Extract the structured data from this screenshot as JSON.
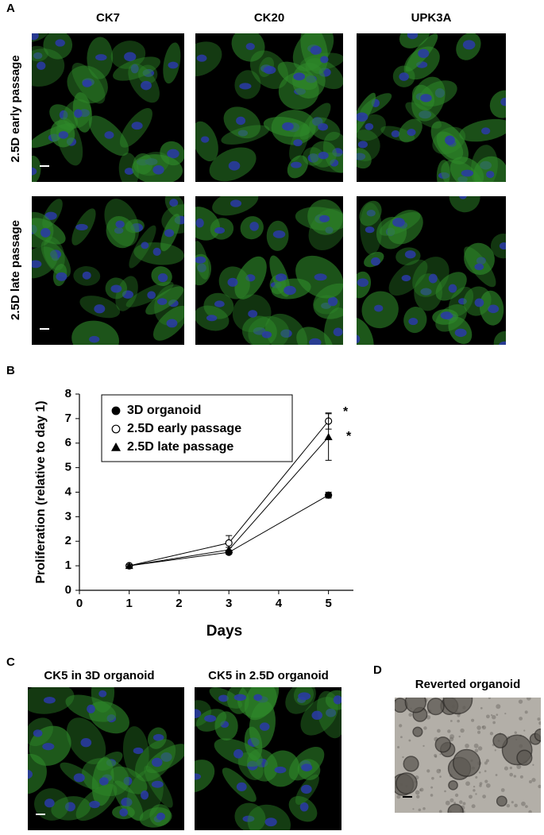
{
  "panels": {
    "a": {
      "label": "A",
      "columns": [
        "CK7",
        "CK20",
        "UPK3A"
      ],
      "rows": [
        "2.5D early passage",
        "2.5D late passage"
      ]
    },
    "b": {
      "label": "B"
    },
    "c": {
      "label": "C",
      "titles": [
        "CK5 in 3D organoid",
        "CK5 in 2.5D organoid"
      ]
    },
    "d": {
      "label": "D",
      "title": "Reverted organoid"
    }
  },
  "chart_data": {
    "type": "line",
    "x": [
      1,
      3,
      5
    ],
    "series": [
      {
        "name": "3D organoid",
        "color": "#000000",
        "marker": "filled-circle",
        "values": [
          1,
          1.55,
          3.88
        ],
        "errors": [
          0.05,
          0.08,
          0.12
        ]
      },
      {
        "name": "2.5D early passage",
        "color": "#000000",
        "marker": "open-circle",
        "values": [
          1,
          1.93,
          6.9
        ],
        "errors": [
          0.05,
          0.3,
          0.33
        ]
      },
      {
        "name": "2.5D late passage",
        "color": "#000000",
        "marker": "triangle",
        "values": [
          1,
          1.65,
          6.25
        ],
        "errors": [
          0.05,
          0.1,
          0.95
        ]
      }
    ],
    "xlim": [
      0,
      5.5
    ],
    "xticks": [
      0,
      1,
      2,
      3,
      4,
      5
    ],
    "ylim": [
      0,
      8
    ],
    "yticks": [
      0,
      1,
      2,
      3,
      4,
      5,
      6,
      7,
      8
    ],
    "xlabel": "Days",
    "ylabel": "Proliferation (relative to day 1)",
    "annotations": [
      "*",
      "*"
    ],
    "legend": "upper-left"
  }
}
